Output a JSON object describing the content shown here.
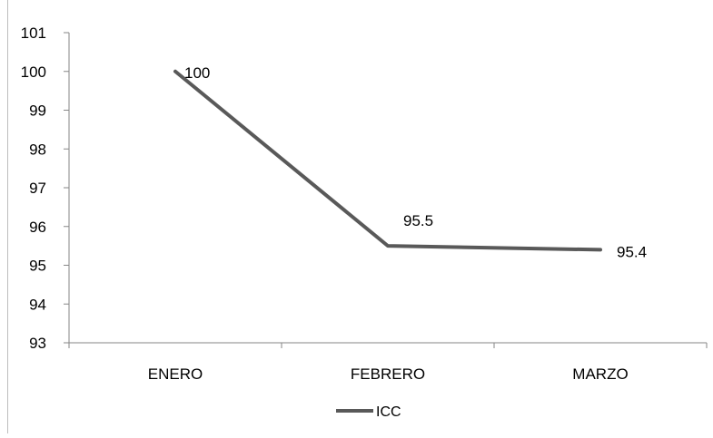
{
  "chart_data": {
    "type": "line",
    "categories": [
      "ENERO",
      "FEBRERO",
      "MARZO"
    ],
    "series": [
      {
        "name": "ICC",
        "values": [
          100,
          95.5,
          95.4
        ],
        "color": "#595959"
      }
    ],
    "data_labels": [
      "100",
      "95.5",
      "95.4"
    ],
    "ylim": [
      93,
      101
    ],
    "yticks": [
      "93",
      "94",
      "95",
      "96",
      "97",
      "98",
      "99",
      "100",
      "101"
    ],
    "grid": false,
    "legend_position": "bottom"
  }
}
